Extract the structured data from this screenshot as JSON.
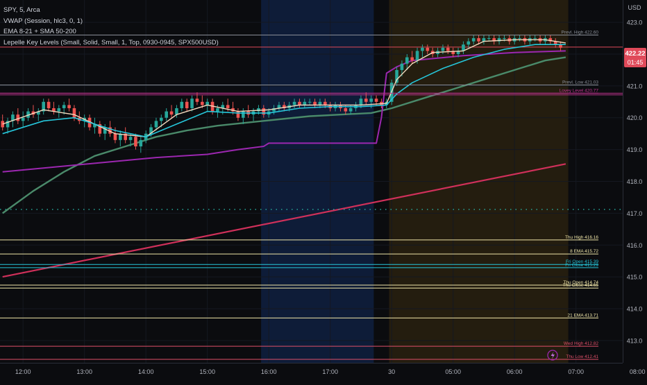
{
  "legend": {
    "line1": "SPY, 5, Arca",
    "line2": "VWAP (Session, hlc3, 0, 1)",
    "line3": "EMA 8-21 + SMA 50-200",
    "line4": "Lepelle Key Levels (Small, Solid, Small, 1, Top, 0930-0945, SPX500USD)"
  },
  "currency": "USD",
  "price_tag": {
    "price": "422.22",
    "countdown": "01:45"
  },
  "colors": {
    "background": "#0b0c0f",
    "premarket_bg": "#0e1c38",
    "aftersession_bg": "#241d0f",
    "bull": "#26a69a",
    "bear": "#ef5350",
    "ema8": "#f5dcc0",
    "ema21": "#26c6da",
    "sma50": "#4a8a6a",
    "sma200": "#d0305a",
    "vwap": "#9c27b0",
    "price_tag": "#e04a5a"
  },
  "chart_data": {
    "type": "candlestick",
    "y_axis": {
      "min": 412.3,
      "max": 423.7,
      "ticks": [
        413,
        414,
        415,
        416,
        417,
        418,
        419,
        420,
        421,
        422,
        423
      ]
    },
    "x_axis": {
      "ticks": [
        {
          "label": "12:00",
          "bar": 4
        },
        {
          "label": "13:00",
          "bar": 16
        },
        {
          "label": "14:00",
          "bar": 28
        },
        {
          "label": "15:00",
          "bar": 40
        },
        {
          "label": "16:00",
          "bar": 52
        },
        {
          "label": "17:00",
          "bar": 64
        },
        {
          "label": "30",
          "bar": 76
        },
        {
          "label": "05:00",
          "bar": 88
        },
        {
          "label": "06:00",
          "bar": 100
        },
        {
          "label": "07:00",
          "bar": 112
        },
        {
          "label": "08:00",
          "bar": 124
        }
      ]
    },
    "sessions": [
      {
        "name": "premarket",
        "from_bar": 51,
        "to_bar": 72
      },
      {
        "name": "extended",
        "from_bar": 76,
        "to_bar": 110
      }
    ],
    "key_levels": [
      {
        "label": "Prev. High",
        "value": 422.6,
        "text": "Prevl. High 422.60",
        "color": "#8a8f98"
      },
      {
        "label": "Prev. Low",
        "value": 421.03,
        "text": "Prevl. Low 421.03",
        "color": "#8a8f98"
      },
      {
        "label": "Lovey Level",
        "value": 420.77,
        "text": "Lovey Level 420.77",
        "color": "#c0338f"
      },
      {
        "label": "Thu High",
        "value": 416.16,
        "text": "Thu High 416.16",
        "color": "#f0e6a8"
      },
      {
        "label": "8 EMA",
        "value": 415.72,
        "text": "8 EMA 415.72",
        "color": "#f0e6a8"
      },
      {
        "label": "Fri Open",
        "value": 415.39,
        "text": "Fri Open 415.39",
        "color": "#26c6da"
      },
      {
        "label": "Fri Close",
        "value": 415.29,
        "text": "Fri Close 415.29",
        "color": "#26c6da"
      },
      {
        "label": "Thu Open",
        "value": 414.74,
        "text": "Thu Open 414.74",
        "color": "#f0e6a8"
      },
      {
        "label": "Thu Close",
        "value": 414.65,
        "text": "Thu Close 414.65",
        "color": "#f0e6a8"
      },
      {
        "label": "21 EMA",
        "value": 413.71,
        "text": "21 EMA 413.71",
        "color": "#f0e6a8"
      },
      {
        "label": "Wed High",
        "value": 412.82,
        "text": "Wed High 412.82",
        "color": "#e0506a"
      },
      {
        "label": "Thu Low",
        "value": 412.41,
        "text": "Thu Low 412.41",
        "color": "#e0506a"
      }
    ],
    "horizontal_lines": [
      {
        "value": 420.77,
        "color": "#c0338f"
      },
      {
        "value": 420.72,
        "color": "#c0338f"
      },
      {
        "value": 422.22,
        "color": "#e04a5a"
      },
      {
        "value": 417.12,
        "color": "#26a69a",
        "dotted": true
      }
    ],
    "candles": [
      [
        419.9,
        420.1,
        419.6,
        419.7
      ],
      [
        419.7,
        420.0,
        419.5,
        419.9
      ],
      [
        419.9,
        420.2,
        419.7,
        420.1
      ],
      [
        420.1,
        420.3,
        419.8,
        419.9
      ],
      [
        419.9,
        420.2,
        419.7,
        420.0
      ],
      [
        420.0,
        420.3,
        419.9,
        420.2
      ],
      [
        420.2,
        420.4,
        420.0,
        420.1
      ],
      [
        420.1,
        420.3,
        419.9,
        420.2
      ],
      [
        420.2,
        420.6,
        420.1,
        420.5
      ],
      [
        420.5,
        420.6,
        420.2,
        420.3
      ],
      [
        420.3,
        420.5,
        420.1,
        420.2
      ],
      [
        420.2,
        420.4,
        420.0,
        420.3
      ],
      [
        420.3,
        420.5,
        420.1,
        420.4
      ],
      [
        420.4,
        420.6,
        420.2,
        420.3
      ],
      [
        420.3,
        420.4,
        419.9,
        420.0
      ],
      [
        420.0,
        420.2,
        419.8,
        419.9
      ],
      [
        419.9,
        420.1,
        419.7,
        420.0
      ],
      [
        420.0,
        420.1,
        419.6,
        419.7
      ],
      [
        419.7,
        420.0,
        419.5,
        419.8
      ],
      [
        419.8,
        419.9,
        419.4,
        419.5
      ],
      [
        419.5,
        419.8,
        419.3,
        419.7
      ],
      [
        419.7,
        419.9,
        419.4,
        419.5
      ],
      [
        419.5,
        419.7,
        419.2,
        419.3
      ],
      [
        419.3,
        419.6,
        419.1,
        419.5
      ],
      [
        419.5,
        419.7,
        419.2,
        419.3
      ],
      [
        419.3,
        419.5,
        419.1,
        419.4
      ],
      [
        419.4,
        419.5,
        419.0,
        419.1
      ],
      [
        419.1,
        419.4,
        418.9,
        419.3
      ],
      [
        419.3,
        419.6,
        419.2,
        419.5
      ],
      [
        419.5,
        419.8,
        419.4,
        419.7
      ],
      [
        419.7,
        420.0,
        419.6,
        419.9
      ],
      [
        419.9,
        420.1,
        419.7,
        420.0
      ],
      [
        420.0,
        420.3,
        419.9,
        420.2
      ],
      [
        420.2,
        420.4,
        420.0,
        420.1
      ],
      [
        420.1,
        420.4,
        420.0,
        420.3
      ],
      [
        420.3,
        420.6,
        420.2,
        420.5
      ],
      [
        420.5,
        420.6,
        420.2,
        420.3
      ],
      [
        420.3,
        420.7,
        420.2,
        420.6
      ],
      [
        420.6,
        420.8,
        420.4,
        420.5
      ],
      [
        420.5,
        420.7,
        420.3,
        420.4
      ],
      [
        420.4,
        420.6,
        420.2,
        420.5
      ],
      [
        420.5,
        420.6,
        420.1,
        420.2
      ],
      [
        420.2,
        420.4,
        420.0,
        420.3
      ],
      [
        420.3,
        420.5,
        420.1,
        420.4
      ],
      [
        420.4,
        420.6,
        420.2,
        420.3
      ],
      [
        420.3,
        420.5,
        420.1,
        420.2
      ],
      [
        420.2,
        420.3,
        419.9,
        420.0
      ],
      [
        420.0,
        420.3,
        419.8,
        420.2
      ],
      [
        420.2,
        420.4,
        420.0,
        420.1
      ],
      [
        420.1,
        420.3,
        419.9,
        420.2
      ],
      [
        420.2,
        420.4,
        420.1,
        420.3
      ],
      [
        420.3,
        420.4,
        420.0,
        420.1
      ],
      [
        420.1,
        420.3,
        420.0,
        420.2
      ],
      [
        420.2,
        420.4,
        420.1,
        420.3
      ],
      [
        420.3,
        420.5,
        420.2,
        420.4
      ],
      [
        420.4,
        420.5,
        420.2,
        420.3
      ],
      [
        420.3,
        420.5,
        420.2,
        420.4
      ],
      [
        420.4,
        420.6,
        420.3,
        420.5
      ],
      [
        420.5,
        420.6,
        420.3,
        420.4
      ],
      [
        420.4,
        420.6,
        420.3,
        420.5
      ],
      [
        420.5,
        420.6,
        420.4,
        420.5
      ],
      [
        420.5,
        420.6,
        420.3,
        420.4
      ],
      [
        420.4,
        420.6,
        420.3,
        420.5
      ],
      [
        420.5,
        420.6,
        420.3,
        420.4
      ],
      [
        420.4,
        420.5,
        420.2,
        420.3
      ],
      [
        420.3,
        420.5,
        420.2,
        420.4
      ],
      [
        420.4,
        420.5,
        420.2,
        420.3
      ],
      [
        420.3,
        420.4,
        420.1,
        420.2
      ],
      [
        420.2,
        420.4,
        420.1,
        420.3
      ],
      [
        420.3,
        420.5,
        420.2,
        420.4
      ],
      [
        420.4,
        420.7,
        420.3,
        420.6
      ],
      [
        420.6,
        420.8,
        420.4,
        420.5
      ],
      [
        420.5,
        420.7,
        420.3,
        420.6
      ],
      [
        420.6,
        420.7,
        420.4,
        420.5
      ],
      [
        420.5,
        420.6,
        420.3,
        420.4
      ],
      [
        420.4,
        420.6,
        420.3,
        420.5
      ],
      [
        420.5,
        421.2,
        420.4,
        421.1
      ],
      [
        421.1,
        421.6,
        421.0,
        421.5
      ],
      [
        421.5,
        421.8,
        421.3,
        421.7
      ],
      [
        421.7,
        422.0,
        421.5,
        421.9
      ],
      [
        421.9,
        422.1,
        421.7,
        421.8
      ],
      [
        421.8,
        422.2,
        421.7,
        422.1
      ],
      [
        422.1,
        422.3,
        421.9,
        422.2
      ],
      [
        422.2,
        422.3,
        422.0,
        422.1
      ],
      [
        422.1,
        422.2,
        421.9,
        422.0
      ],
      [
        422.0,
        422.2,
        421.9,
        422.1
      ],
      [
        422.1,
        422.3,
        422.0,
        422.2
      ],
      [
        422.2,
        422.3,
        422.0,
        422.1
      ],
      [
        422.1,
        422.2,
        421.9,
        422.0
      ],
      [
        422.0,
        422.2,
        421.9,
        422.1
      ],
      [
        422.1,
        422.4,
        422.0,
        422.3
      ],
      [
        422.3,
        422.5,
        422.2,
        422.4
      ],
      [
        422.4,
        422.6,
        422.3,
        422.5
      ],
      [
        422.5,
        422.6,
        422.3,
        422.4
      ],
      [
        422.4,
        422.6,
        422.3,
        422.5
      ],
      [
        422.5,
        422.6,
        422.4,
        422.5
      ],
      [
        422.5,
        422.6,
        422.3,
        422.4
      ],
      [
        422.4,
        422.6,
        422.3,
        422.5
      ],
      [
        422.5,
        422.6,
        422.4,
        422.5
      ],
      [
        422.5,
        422.6,
        422.3,
        422.4
      ],
      [
        422.4,
        422.6,
        422.3,
        422.5
      ],
      [
        422.5,
        422.6,
        422.4,
        422.5
      ],
      [
        422.5,
        422.6,
        422.3,
        422.4
      ],
      [
        422.4,
        422.6,
        422.3,
        422.5
      ],
      [
        422.5,
        422.6,
        422.4,
        422.5
      ],
      [
        422.5,
        422.6,
        422.3,
        422.4
      ],
      [
        422.4,
        422.6,
        422.3,
        422.5
      ],
      [
        422.5,
        422.6,
        422.3,
        422.4
      ],
      [
        422.4,
        422.5,
        422.2,
        422.3
      ],
      [
        422.3,
        422.4,
        422.1,
        422.2
      ]
    ],
    "indicators": [
      {
        "name": "EMA 8",
        "color": "#f5dcc0",
        "width": 1.4,
        "points": [
          [
            0,
            419.8
          ],
          [
            8,
            420.25
          ],
          [
            14,
            420.1
          ],
          [
            22,
            419.5
          ],
          [
            28,
            419.4
          ],
          [
            34,
            420.1
          ],
          [
            40,
            420.4
          ],
          [
            46,
            420.2
          ],
          [
            52,
            420.25
          ],
          [
            58,
            420.4
          ],
          [
            64,
            420.4
          ],
          [
            70,
            420.4
          ],
          [
            75,
            420.45
          ],
          [
            77,
            421.2
          ],
          [
            80,
            421.7
          ],
          [
            84,
            422.05
          ],
          [
            90,
            422.1
          ],
          [
            94,
            422.4
          ],
          [
            100,
            422.45
          ],
          [
            106,
            422.45
          ],
          [
            110,
            422.35
          ]
        ]
      },
      {
        "name": "EMA 21",
        "color": "#26c6da",
        "width": 1.6,
        "points": [
          [
            0,
            419.5
          ],
          [
            8,
            419.9
          ],
          [
            14,
            420.0
          ],
          [
            22,
            419.6
          ],
          [
            28,
            419.4
          ],
          [
            34,
            419.8
          ],
          [
            40,
            420.2
          ],
          [
            46,
            420.15
          ],
          [
            52,
            420.15
          ],
          [
            58,
            420.3
          ],
          [
            64,
            420.35
          ],
          [
            70,
            420.35
          ],
          [
            75,
            420.4
          ],
          [
            77,
            420.75
          ],
          [
            80,
            421.1
          ],
          [
            86,
            421.55
          ],
          [
            92,
            421.9
          ],
          [
            98,
            422.15
          ],
          [
            104,
            422.3
          ],
          [
            110,
            422.3
          ]
        ]
      },
      {
        "name": "SMA 50",
        "color": "#4a8a6a",
        "width": 2.4,
        "points": [
          [
            0,
            417.0
          ],
          [
            6,
            417.7
          ],
          [
            12,
            418.3
          ],
          [
            18,
            418.8
          ],
          [
            24,
            419.1
          ],
          [
            30,
            419.4
          ],
          [
            36,
            419.6
          ],
          [
            42,
            419.75
          ],
          [
            48,
            419.85
          ],
          [
            54,
            419.95
          ],
          [
            60,
            420.05
          ],
          [
            66,
            420.1
          ],
          [
            72,
            420.15
          ],
          [
            76,
            420.3
          ],
          [
            82,
            420.6
          ],
          [
            88,
            420.9
          ],
          [
            94,
            421.2
          ],
          [
            100,
            421.5
          ],
          [
            106,
            421.8
          ],
          [
            110,
            421.9
          ]
        ]
      },
      {
        "name": "SMA 200",
        "color": "#d0305a",
        "width": 2.2,
        "points": [
          [
            0,
            415.0
          ],
          [
            110,
            418.55
          ]
        ]
      },
      {
        "name": "VWAP",
        "color": "#9c27b0",
        "width": 2.0,
        "points": [
          [
            0,
            418.3
          ],
          [
            10,
            418.45
          ],
          [
            20,
            418.6
          ],
          [
            30,
            418.75
          ],
          [
            40,
            418.85
          ],
          [
            46,
            419.0
          ],
          [
            51,
            419.1
          ],
          [
            52,
            419.2
          ],
          [
            73,
            419.2
          ],
          [
            74,
            420.0
          ],
          [
            75,
            421.4
          ],
          [
            77,
            421.6
          ],
          [
            80,
            421.8
          ],
          [
            90,
            421.95
          ],
          [
            100,
            422.05
          ],
          [
            110,
            422.1
          ]
        ]
      }
    ]
  }
}
